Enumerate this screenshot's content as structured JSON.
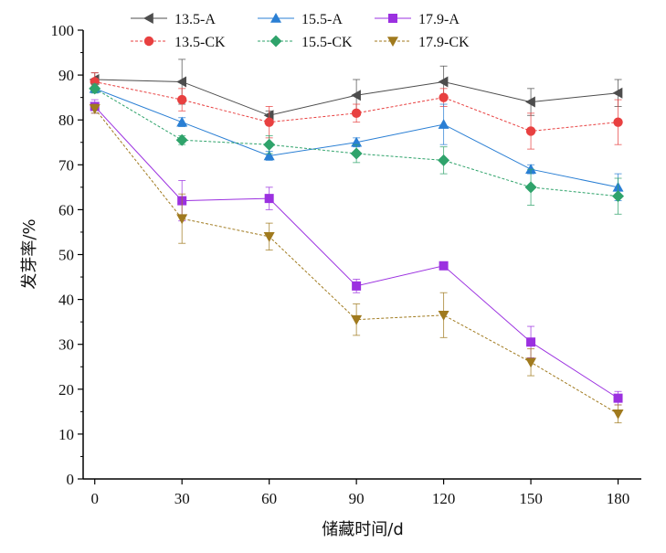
{
  "chart_data": {
    "type": "line",
    "xlabel": "储藏时间/d",
    "ylabel": "发芽率/%",
    "x": [
      0,
      30,
      60,
      90,
      120,
      150,
      180
    ],
    "xlim": [
      -4,
      188
    ],
    "ylim": [
      0,
      100
    ],
    "xticks": [
      "0",
      "30",
      "60",
      "90",
      "120",
      "150",
      "180"
    ],
    "yticks": [
      "0",
      "10",
      "20",
      "30",
      "40",
      "50",
      "60",
      "70",
      "80",
      "90",
      "100"
    ],
    "legend_position": "top",
    "series": [
      {
        "name": "13.5-A",
        "color": "#4d4d4d",
        "dash": "solid",
        "marker": "triangle-left",
        "values": [
          89,
          88.5,
          81,
          85.5,
          88.5,
          84,
          86
        ],
        "errors": [
          1.5,
          5,
          1,
          3.5,
          3.5,
          3,
          3
        ]
      },
      {
        "name": "13.5-CK",
        "color": "#e84040",
        "dash": "dashed",
        "marker": "circle",
        "values": [
          88.5,
          84.5,
          79.5,
          81.5,
          85,
          77.5,
          79.5
        ],
        "errors": [
          2,
          2.5,
          3.5,
          2,
          2,
          4,
          5
        ]
      },
      {
        "name": "15.5-A",
        "color": "#2a7fd4",
        "dash": "solid",
        "marker": "triangle-up",
        "values": [
          87,
          79.5,
          72,
          75,
          79,
          69,
          65
        ],
        "errors": [
          1,
          1,
          1,
          1,
          4.5,
          1,
          3
        ]
      },
      {
        "name": "15.5-CK",
        "color": "#2fa36b",
        "dash": "dashed",
        "marker": "diamond",
        "values": [
          87,
          75.5,
          74.5,
          72.5,
          71,
          65,
          63
        ],
        "errors": [
          1,
          1,
          2,
          2,
          3,
          4,
          4
        ]
      },
      {
        "name": "17.9-A",
        "color": "#9b30e0",
        "dash": "solid",
        "marker": "square",
        "values": [
          83,
          62,
          62.5,
          43,
          47.5,
          30.5,
          18
        ],
        "errors": [
          1.5,
          4.5,
          2.5,
          1.5,
          0.5,
          3.5,
          1.5
        ]
      },
      {
        "name": "17.9-CK",
        "color": "#a07a1e",
        "dash": "dashed",
        "marker": "triangle-down",
        "values": [
          82.5,
          58,
          54,
          35.5,
          36.5,
          26,
          14.5
        ],
        "errors": [
          1,
          5.5,
          3,
          3.5,
          5,
          3,
          2
        ]
      }
    ]
  }
}
